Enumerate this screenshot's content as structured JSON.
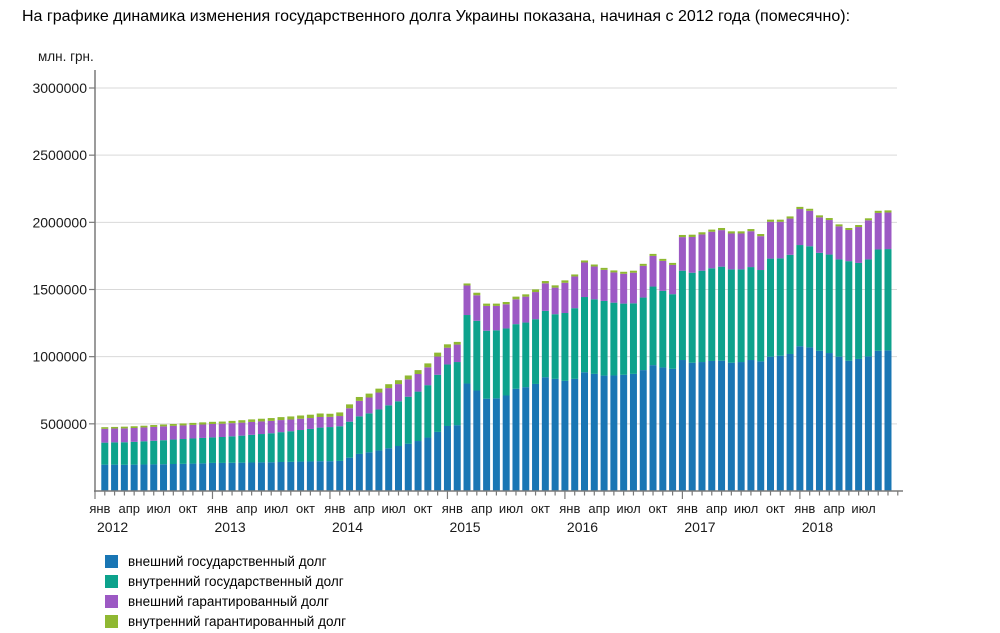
{
  "page": {
    "title": "На графике динамика изменения государственного долга Украины показана, начиная с 2012 года (помесячно):",
    "y_unit_label": "млн. грн."
  },
  "chart_data": {
    "type": "bar",
    "stacked": true,
    "title": "На графике динамика изменения государственного долга Украины показана, начиная с 2012 года (помесячно):",
    "ylabel": "млн. грн.",
    "xlabel": "",
    "grid": true,
    "legend_position": "bottom-left",
    "ylim": [
      0,
      3100000
    ],
    "y_ticks": [
      500000,
      1000000,
      1500000,
      2000000,
      2500000,
      3000000
    ],
    "axis_color": "#7a7a7a",
    "grid_color": "#d9d9d9",
    "text_color": "#1a1a1a",
    "years": [
      {
        "label": "2012",
        "months": 12,
        "tick_labels": [
          "янв",
          "апр",
          "июл",
          "окт"
        ]
      },
      {
        "label": "2013",
        "months": 12,
        "tick_labels": [
          "янв",
          "апр",
          "июл",
          "окт"
        ]
      },
      {
        "label": "2014",
        "months": 12,
        "tick_labels": [
          "янв",
          "апр",
          "июл",
          "окт"
        ]
      },
      {
        "label": "2015",
        "months": 12,
        "tick_labels": [
          "янв",
          "апр",
          "июл",
          "окт"
        ]
      },
      {
        "label": "2016",
        "months": 12,
        "tick_labels": [
          "янв",
          "апр",
          "июл",
          "окт"
        ]
      },
      {
        "label": "2017",
        "months": 12,
        "tick_labels": [
          "янв",
          "апр",
          "июл",
          "окт"
        ]
      },
      {
        "label": "2018",
        "months": 10,
        "tick_labels": [
          "янв",
          "апр",
          "июл"
        ]
      }
    ],
    "series": [
      {
        "name": "внешний государственный долг",
        "color": "#1976b4",
        "values": [
          196000,
          196000,
          195000,
          196000,
          197000,
          198000,
          199000,
          201000,
          202000,
          204000,
          206000,
          209000,
          209000,
          210000,
          211000,
          212000,
          213000,
          214000,
          216000,
          217000,
          219000,
          220000,
          222000,
          222000,
          224000,
          248000,
          276000,
          288000,
          302000,
          318000,
          335000,
          352000,
          372000,
          398000,
          440000,
          484000,
          490000,
          800000,
          748000,
          687000,
          690000,
          711000,
          761000,
          773000,
          797000,
          847000,
          835000,
          820000,
          835000,
          884000,
          872000,
          859000,
          860000,
          865000,
          872000,
          900000,
          937000,
          920000,
          910000,
          975000,
          955000,
          960000,
          968000,
          970000,
          955000,
          960000,
          975000,
          965000,
          1000000,
          1007000,
          1020000,
          1078000,
          1069000,
          1044000,
          1027000,
          1000000,
          970000,
          983000,
          1002000,
          1044000,
          1047000
        ]
      },
      {
        "name": "внутренний государственный долг",
        "color": "#0da28c",
        "values": [
          164000,
          166000,
          168000,
          170000,
          173000,
          176000,
          179000,
          182000,
          185000,
          187000,
          189000,
          190000,
          193000,
          197000,
          201000,
          206000,
          211000,
          216000,
          222000,
          228000,
          235000,
          242000,
          250000,
          254000,
          258000,
          268000,
          280000,
          290000,
          305000,
          320000,
          333000,
          350000,
          368000,
          390000,
          425000,
          458000,
          470000,
          510000,
          519000,
          506000,
          506000,
          499000,
          481000,
          481000,
          482000,
          494000,
          481000,
          505000,
          526000,
          560000,
          555000,
          556000,
          542000,
          530000,
          525000,
          540000,
          585000,
          570000,
          555000,
          665000,
          670000,
          680000,
          690000,
          700000,
          695000,
          690000,
          692000,
          680000,
          730000,
          725000,
          738000,
          753000,
          753000,
          729000,
          733000,
          724000,
          741000,
          715000,
          722000,
          754000,
          754000
        ]
      },
      {
        "name": "внешний гарантированный долг",
        "color": "#9c59c4",
        "values": [
          103000,
          103000,
          103000,
          103000,
          103000,
          103000,
          103000,
          102000,
          101000,
          101000,
          100000,
          100000,
          99000,
          98000,
          97000,
          96000,
          94000,
          92000,
          90000,
          87000,
          84000,
          81000,
          79000,
          76000,
          76000,
          100000,
          115000,
          118000,
          126000,
          128000,
          128000,
          129000,
          131000,
          133000,
          136000,
          125000,
          130000,
          220000,
          190000,
          185000,
          182000,
          180000,
          185000,
          193000,
          202000,
          205000,
          198000,
          225000,
          236000,
          257000,
          244000,
          231000,
          225000,
          222000,
          228000,
          236000,
          228000,
          223000,
          218000,
          250000,
          266000,
          270000,
          272000,
          272000,
          267000,
          267000,
          267000,
          252000,
          274000,
          272000,
          270000,
          268000,
          264000,
          264000,
          257000,
          246000,
          232000,
          267000,
          291000,
          272000,
          272000
        ]
      },
      {
        "name": "внутренний гарантированный долг",
        "color": "#8fb832",
        "values": [
          12000,
          12000,
          13000,
          13000,
          13000,
          14000,
          14000,
          14000,
          15000,
          15000,
          16000,
          16000,
          16000,
          17000,
          18000,
          19000,
          20000,
          21000,
          22000,
          23000,
          24000,
          25000,
          26000,
          23000,
          27000,
          29000,
          29000,
          29000,
          29000,
          29000,
          29000,
          29000,
          29000,
          29000,
          29000,
          25000,
          20000,
          15000,
          19000,
          17000,
          17000,
          17000,
          20000,
          17000,
          20000,
          17000,
          17000,
          18000,
          15000,
          15000,
          15000,
          15000,
          15000,
          15000,
          15000,
          15000,
          15000,
          15000,
          15000,
          16000,
          17000,
          16000,
          16000,
          16000,
          16000,
          16000,
          16000,
          16000,
          16000,
          16000,
          16000,
          16000,
          15000,
          15000,
          15000,
          15000,
          15000,
          15000,
          15000,
          16000,
          16000
        ]
      }
    ]
  }
}
